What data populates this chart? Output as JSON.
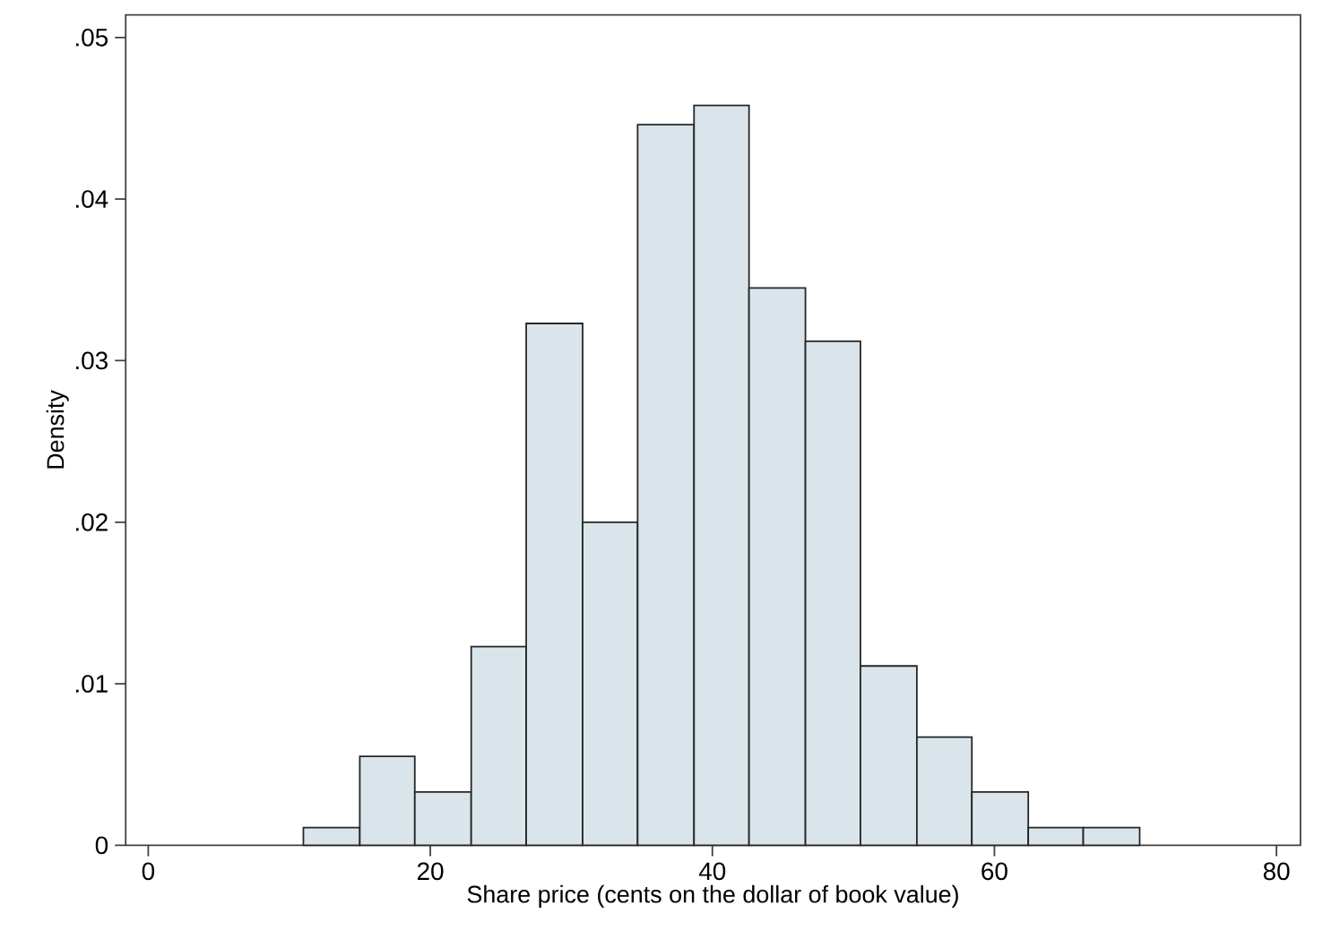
{
  "chart_data": {
    "type": "histogram",
    "xlabel": "Share price (cents on the dollar of book value)",
    "ylabel": "Density",
    "bins": [
      11.0,
      15.0,
      18.9,
      22.9,
      26.8,
      30.8,
      34.7,
      38.7,
      42.6,
      46.6,
      50.5,
      54.5,
      58.4,
      62.4,
      66.3,
      70.3
    ],
    "values": [
      0.0011,
      0.0055,
      0.0033,
      0.0123,
      0.0323,
      0.02,
      0.0446,
      0.0458,
      0.0345,
      0.0312,
      0.0111,
      0.0067,
      0.0033,
      0.0011,
      0.0011
    ],
    "color": "#d9e5eb",
    "xlim": [
      -1.6,
      81.7
    ],
    "ylim": [
      0,
      0.0514
    ],
    "xticks": [
      0,
      20,
      40,
      60,
      80
    ],
    "yticks": [
      0,
      {
        "value": 0.01,
        "label": ".01"
      },
      {
        "value": 0.02,
        "label": ".02"
      },
      {
        "value": 0.03,
        "label": ".03"
      },
      {
        "value": 0.04,
        "label": ".04"
      },
      {
        "value": 0.05,
        "label": ".05"
      }
    ],
    "grid": false
  }
}
